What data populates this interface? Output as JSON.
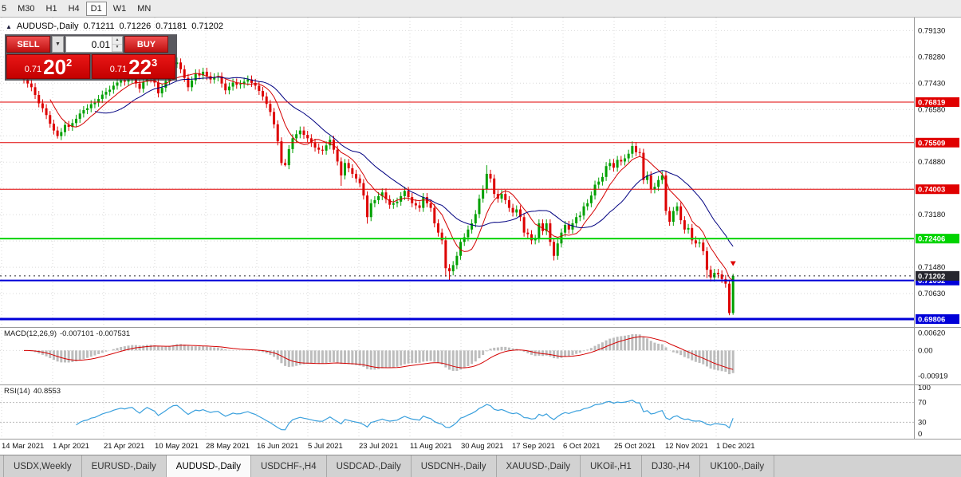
{
  "toolbar": {
    "timeframes": [
      "5",
      "M30",
      "H1",
      "H4",
      "D1",
      "W1",
      "MN"
    ],
    "active": "D1"
  },
  "chart_header": {
    "collapse": "▲",
    "symbol": "AUDUSD-,Daily",
    "open": "0.71211",
    "high": "0.71226",
    "low": "0.71181",
    "close": "0.71202"
  },
  "trade_panel": {
    "sell": "SELL",
    "buy": "BUY",
    "volume": "0.01",
    "bid": {
      "prefix": "0.71",
      "big": "20",
      "sup": "2"
    },
    "ask": {
      "prefix": "0.71",
      "big": "22",
      "sup": "3"
    }
  },
  "colors": {
    "up": "#00a000",
    "down": "#dd0000",
    "ma_fast": "#d40000",
    "ma_slow": "#000080",
    "macd_hist": "#bdbdbd",
    "macd_signal": "#d40000",
    "rsi_line": "#3aa0dd",
    "grid": "#d9d9d9",
    "axis_text": "#111111",
    "separator": "#9a9a9a"
  },
  "chart_data": {
    "type": "candlestick",
    "symbol": "AUDUSD-,Daily",
    "x_labels": [
      "14 Mar 2021",
      "1 Apr 2021",
      "21 Apr 2021",
      "10 May 2021",
      "28 May 2021",
      "16 Jun 2021",
      "5 Jul 2021",
      "23 Jul 2021",
      "11 Aug 2021",
      "30 Aug 2021",
      "17 Sep 2021",
      "6 Oct 2021",
      "25 Oct 2021",
      "12 Nov 2021",
      "1 Dec 2021"
    ],
    "scale": {
      "max": 0.795,
      "min": 0.696
    },
    "y_ticks": [
      0.7913,
      0.7828,
      0.7743,
      0.7658,
      0.7573,
      0.7488,
      0.7403,
      0.7318,
      0.7233,
      0.7148,
      0.7063,
      0.6978
    ],
    "first_open": 0.7768,
    "wick": 0.0013,
    "closes": [
      0.7755,
      0.7742,
      0.773,
      0.7705,
      0.7678,
      0.7662,
      0.764,
      0.7612,
      0.759,
      0.7572,
      0.7585,
      0.7608,
      0.7602,
      0.7614,
      0.7628,
      0.7645,
      0.7656,
      0.7662,
      0.7675,
      0.768,
      0.7692,
      0.7706,
      0.7715,
      0.7722,
      0.7735,
      0.7745,
      0.7752,
      0.7748,
      0.7756,
      0.776,
      0.7742,
      0.7725,
      0.7748,
      0.777,
      0.7758,
      0.7745,
      0.771,
      0.7728,
      0.775,
      0.7778,
      0.7805,
      0.781,
      0.7788,
      0.776,
      0.773,
      0.7752,
      0.7775,
      0.7768,
      0.778,
      0.7766,
      0.7755,
      0.7762,
      0.7765,
      0.7742,
      0.772,
      0.7732,
      0.7745,
      0.7738,
      0.774,
      0.7748,
      0.7755,
      0.7744,
      0.7735,
      0.7718,
      0.77,
      0.7676,
      0.765,
      0.761,
      0.7555,
      0.7485,
      0.7478,
      0.753,
      0.7565,
      0.7578,
      0.759,
      0.7576,
      0.7565,
      0.755,
      0.7535,
      0.7528,
      0.7525,
      0.7542,
      0.756,
      0.7528,
      0.749,
      0.7445,
      0.7485,
      0.7468,
      0.745,
      0.7435,
      0.742,
      0.738,
      0.731,
      0.7355,
      0.7365,
      0.7378,
      0.739,
      0.7368,
      0.735,
      0.7355,
      0.736,
      0.7378,
      0.7395,
      0.7375,
      0.7355,
      0.7348,
      0.734,
      0.7375,
      0.7355,
      0.734,
      0.729,
      0.726,
      0.7235,
      0.7145,
      0.7135,
      0.7155,
      0.7185,
      0.723,
      0.7245,
      0.727,
      0.729,
      0.732,
      0.737,
      0.74,
      0.745,
      0.7435,
      0.7385,
      0.737,
      0.7385,
      0.7365,
      0.734,
      0.7325,
      0.7335,
      0.731,
      0.726,
      0.7255,
      0.7235,
      0.724,
      0.729,
      0.7265,
      0.729,
      0.723,
      0.7185,
      0.7225,
      0.726,
      0.7285,
      0.727,
      0.729,
      0.731,
      0.7315,
      0.7345,
      0.7355,
      0.738,
      0.7415,
      0.7425,
      0.744,
      0.7475,
      0.7485,
      0.747,
      0.7495,
      0.749,
      0.75,
      0.7515,
      0.754,
      0.752,
      0.7518,
      0.743,
      0.7445,
      0.74,
      0.7408,
      0.743,
      0.7445,
      0.733,
      0.7295,
      0.733,
      0.7345,
      0.73,
      0.727,
      0.7275,
      0.7235,
      0.7225,
      0.7228,
      0.72,
      0.714,
      0.7115,
      0.713,
      0.7125,
      0.711,
      0.7095,
      0.7,
      0.712
    ],
    "wick_overrides": {
      "9": {
        "l": 0.7564
      },
      "40": {
        "h": 0.782
      },
      "41": {
        "h": 0.7826
      },
      "69": {
        "l": 0.7477
      },
      "70": {
        "l": 0.7474
      },
      "85": {
        "l": 0.7411
      },
      "92": {
        "l": 0.7289
      },
      "113": {
        "l": 0.7118
      },
      "114": {
        "l": 0.7106
      },
      "124": {
        "h": 0.7478
      },
      "142": {
        "l": 0.717
      },
      "163": {
        "h": 0.7555
      },
      "183": {
        "l": 0.7113
      },
      "189": {
        "l": 0.6993
      },
      "190": {
        "h": 0.7127,
        "l": 0.6994
      }
    },
    "ma": {
      "fast": 8,
      "slow": 20
    },
    "levels": [
      {
        "price": 0.76819,
        "label": "0.76819",
        "color": "#e00000",
        "width": 1
      },
      {
        "price": 0.75509,
        "label": "0.75509",
        "color": "#e00000",
        "width": 1
      },
      {
        "price": 0.74003,
        "label": "0.74003",
        "color": "#e00000",
        "width": 1
      },
      {
        "price": 0.72406,
        "label": "0.72406",
        "color": "#00d300",
        "width": 2
      },
      {
        "price": 0.71052,
        "label": "0.71052",
        "color": "#0000d8",
        "width": 2
      },
      {
        "price": 0.69806,
        "label": "0.69806",
        "color": "#0000d8",
        "width": 3
      }
    ],
    "current_price": {
      "value": 0.71202,
      "label": "0.71202",
      "color": "#26262e"
    },
    "marker": {
      "index": 190,
      "price": 0.7152,
      "color": "#dd0000"
    },
    "macd": {
      "title": "MACD(12,26,9)",
      "values": "-0.007101 -0.007531",
      "fast": 12,
      "slow": 26,
      "signal": 9,
      "scale": {
        "max": 0.0075,
        "min": -0.011
      },
      "ticks": [
        {
          "value": 0.0062,
          "label": "0.00620"
        },
        {
          "value": 0,
          "label": "0.00"
        },
        {
          "value": -0.00919,
          "label": "-0.00919"
        }
      ]
    },
    "rsi": {
      "title": "RSI(14)",
      "value": "40.8553",
      "period": 14,
      "levels": [
        70,
        30
      ],
      "ticks": [
        {
          "value": 100,
          "label": "100"
        },
        {
          "value": 70,
          "label": "70"
        },
        {
          "value": 30,
          "label": "30"
        },
        {
          "value": 0,
          "label": "0"
        }
      ]
    }
  },
  "tabs": {
    "items": [
      "USDX,Weekly",
      "EURUSD-,Daily",
      "AUDUSD-,Daily",
      "USDCHF-,H4",
      "USDCAD-,Daily",
      "USDCNH-,Daily",
      "XAUUSD-,Daily",
      "UKOil-,H1",
      "DJ30-,H4",
      "UK100-,Daily"
    ],
    "active": "AUDUSD-,Daily"
  }
}
